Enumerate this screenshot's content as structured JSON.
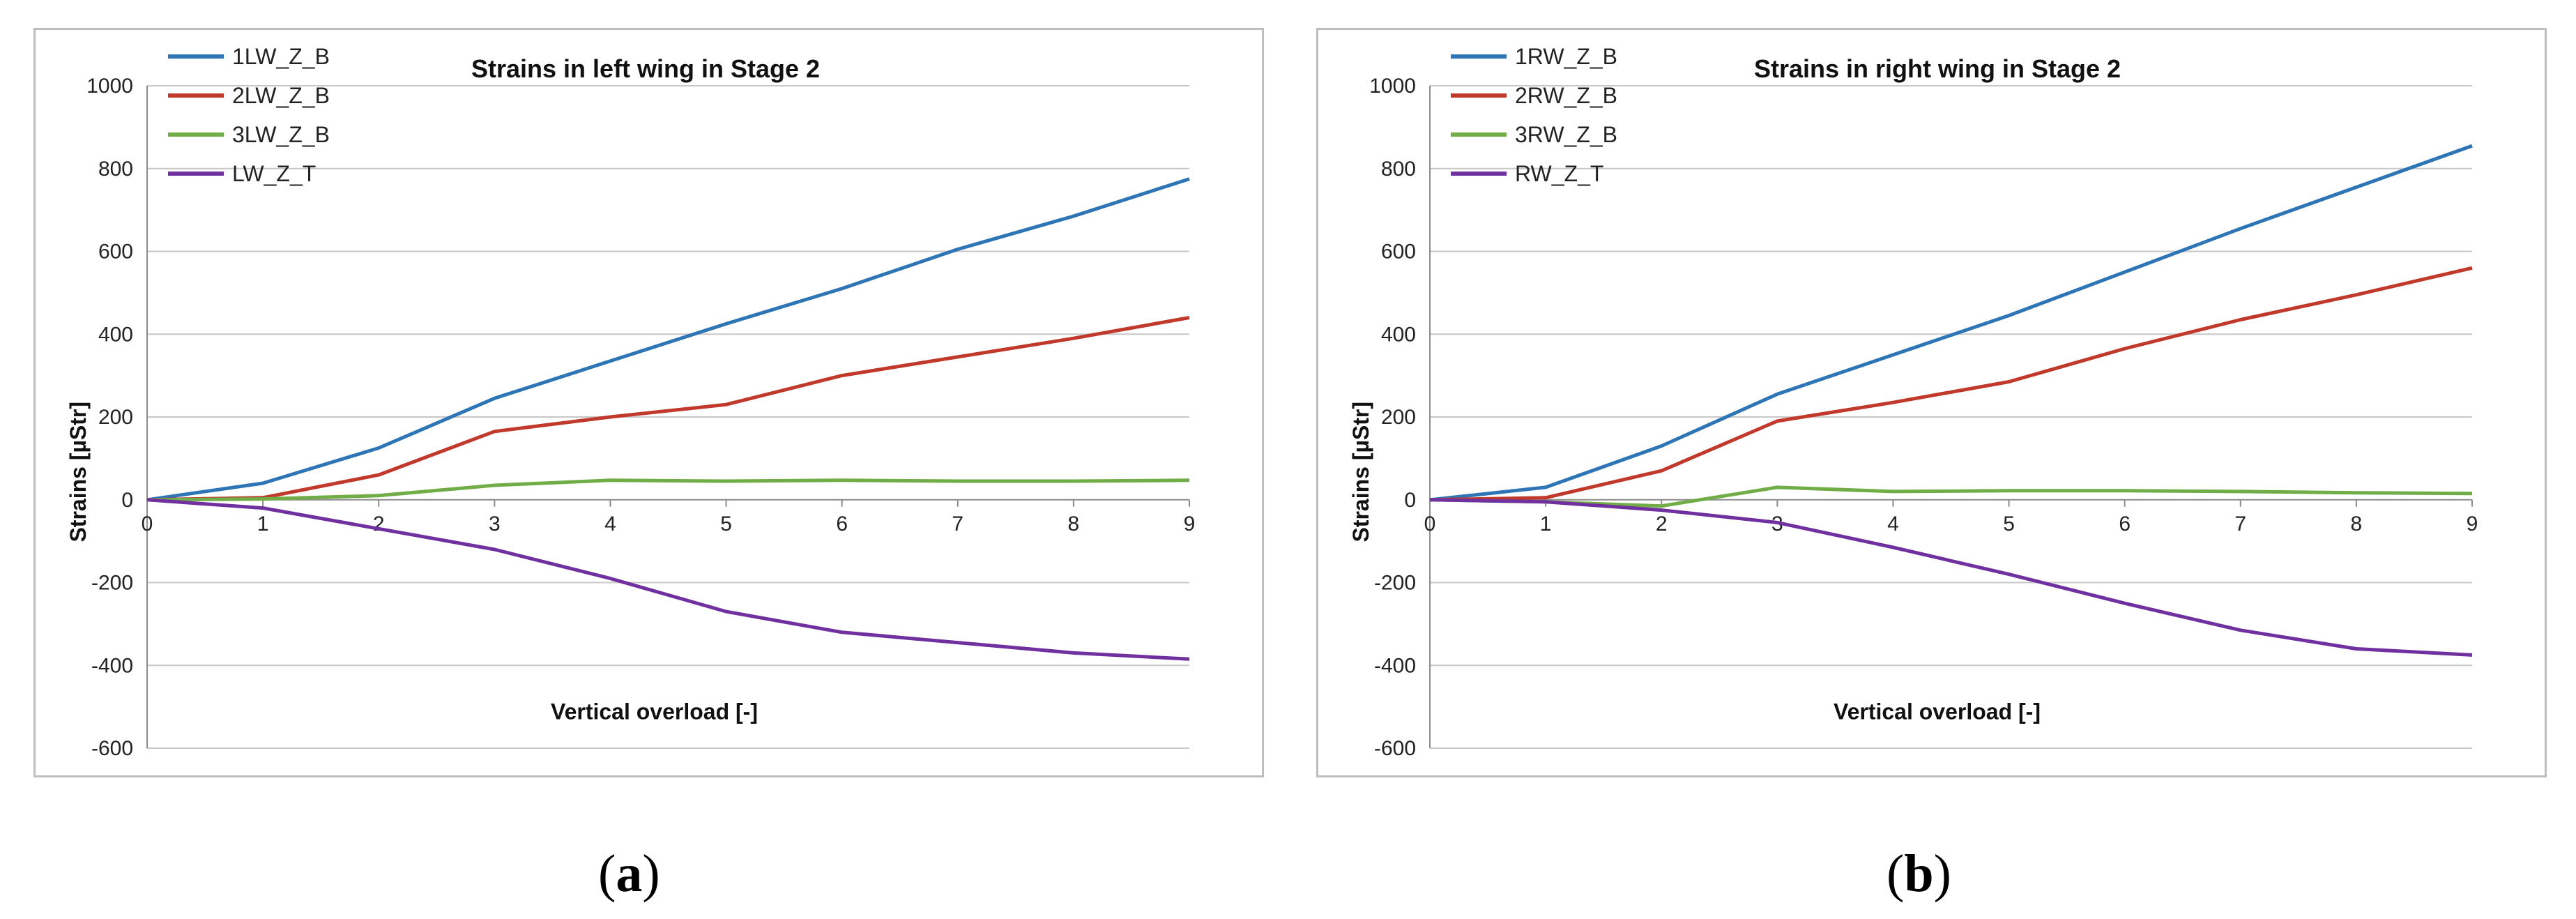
{
  "chart_data": [
    {
      "type": "line",
      "title": "Strains in left wing in Stage 2",
      "xlabel": "Vertical overload [-]",
      "ylabel": "Strains [µStr]",
      "xlim": [
        0,
        9
      ],
      "ylim": [
        -600,
        1000
      ],
      "x_ticks": [
        "0",
        "1",
        "2",
        "3",
        "4",
        "5",
        "6",
        "7",
        "8",
        "9"
      ],
      "y_ticks": [
        "1000",
        "800",
        "600",
        "400",
        "200",
        "0",
        "-200",
        "-400",
        "-600"
      ],
      "grid": true,
      "legend": "top-left",
      "x": [
        0,
        1,
        2,
        3,
        4,
        5,
        6,
        7,
        8,
        9
      ],
      "series": [
        {
          "name": "1LW_Z_B",
          "color": "#2e75b6",
          "values": [
            0,
            40,
            125,
            245,
            335,
            425,
            510,
            605,
            685,
            775
          ]
        },
        {
          "name": "2LW_Z_B",
          "color": "#c0392b",
          "values": [
            0,
            5,
            60,
            165,
            200,
            230,
            300,
            345,
            390,
            440
          ]
        },
        {
          "name": "3LW_Z_B",
          "color": "#70ad47",
          "values": [
            0,
            2,
            10,
            35,
            47,
            45,
            47,
            45,
            45,
            47
          ]
        },
        {
          "name": "LW_Z_T",
          "color": "#7030a0",
          "values": [
            0,
            -20,
            -70,
            -120,
            -190,
            -270,
            -320,
            -345,
            -370,
            -385
          ]
        }
      ]
    },
    {
      "type": "line",
      "title": "Strains in right wing in Stage 2",
      "xlabel": "Vertical overload [-]",
      "ylabel": "Strains [µStr]",
      "xlim": [
        0,
        9
      ],
      "ylim": [
        -600,
        1000
      ],
      "x_ticks": [
        "0",
        "1",
        "2",
        "3",
        "4",
        "5",
        "6",
        "7",
        "8",
        "9"
      ],
      "y_ticks": [
        "1000",
        "800",
        "600",
        "400",
        "200",
        "0",
        "-200",
        "-400",
        "-600"
      ],
      "grid": true,
      "legend": "top-left",
      "x": [
        0,
        1,
        2,
        3,
        4,
        5,
        6,
        7,
        8,
        9
      ],
      "series": [
        {
          "name": "1RW_Z_B",
          "color": "#2e75b6",
          "values": [
            0,
            30,
            130,
            255,
            350,
            445,
            550,
            655,
            755,
            855
          ]
        },
        {
          "name": "2RW_Z_B",
          "color": "#c0392b",
          "values": [
            0,
            5,
            70,
            190,
            235,
            285,
            365,
            435,
            495,
            560
          ]
        },
        {
          "name": "3RW_Z_B",
          "color": "#70ad47",
          "values": [
            0,
            -5,
            -15,
            30,
            20,
            22,
            22,
            20,
            17,
            15
          ]
        },
        {
          "name": "RW_Z_T",
          "color": "#7030a0",
          "values": [
            0,
            -5,
            -25,
            -55,
            -115,
            -180,
            -250,
            -315,
            -360,
            -375
          ]
        }
      ]
    }
  ],
  "labels": {
    "a": "a",
    "b": "b"
  }
}
